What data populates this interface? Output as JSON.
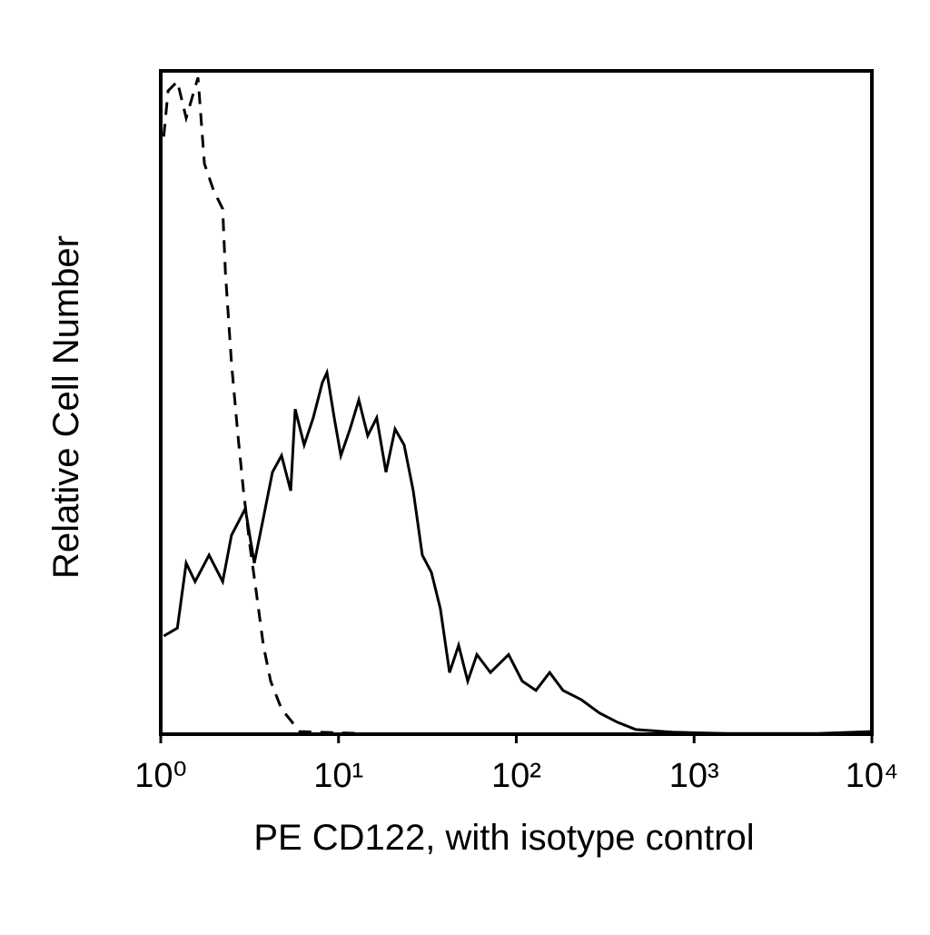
{
  "chart_data": {
    "type": "line",
    "xlabel": "PE CD122, with isotype control",
    "ylabel": "Relative Cell Number",
    "xscale": "log",
    "xlim": [
      1,
      10000
    ],
    "ylim": [
      0,
      100
    ],
    "xticks": [
      {
        "value": 1,
        "label": "10⁰"
      },
      {
        "value": 10,
        "label": "10¹"
      },
      {
        "value": 100,
        "label": "10²"
      },
      {
        "value": 1000,
        "label": "10³"
      },
      {
        "value": 10000,
        "label": "10⁴"
      }
    ],
    "series": [
      {
        "color": "#000000",
        "style": "solid",
        "x": [
          1.04,
          1.24,
          1.39,
          1.56,
          1.87,
          2.23,
          2.5,
          2.99,
          3.36,
          3.78,
          4.25,
          4.78,
          5.38,
          5.7,
          6.41,
          7.21,
          8.11,
          8.61,
          9.46,
          10.3,
          11.6,
          13,
          14.6,
          16.4,
          18.5,
          20.8,
          23.4,
          26.3,
          29.6,
          33.3,
          37.4,
          42.1,
          47.4,
          53.3,
          60,
          71.5,
          90.5,
          108,
          129,
          154,
          183,
          232,
          293,
          371,
          470,
          752,
          1525,
          4935,
          10000
        ],
        "values": [
          14.8,
          16,
          25.8,
          23,
          27,
          23,
          30,
          34,
          25.8,
          32.6,
          39.5,
          42,
          36.7,
          49,
          43.6,
          47.7,
          53,
          54.5,
          47.7,
          42,
          46,
          50.4,
          45,
          47.7,
          39.5,
          46,
          43.6,
          36.7,
          27,
          24.4,
          18.9,
          9.3,
          13.4,
          8,
          12,
          9.3,
          12,
          8,
          6.6,
          9.3,
          6.6,
          5.2,
          3.2,
          1.8,
          0.7,
          0.3,
          0.1,
          0.1,
          0.4
        ]
      },
      {
        "color": "#000000",
        "style": "dashed",
        "x": [
          1.04,
          1.1,
          1.24,
          1.39,
          1.62,
          1.76,
          1.98,
          2.23,
          2.31,
          2.5,
          2.72,
          2.92,
          3.17,
          3.44,
          3.78,
          4.15,
          4.78,
          6.05,
          13.8
        ],
        "values": [
          90.1,
          97,
          98.4,
          92.9,
          99,
          86,
          82,
          79.2,
          69.6,
          55.9,
          44.9,
          36.7,
          28.5,
          21.6,
          13.4,
          8,
          3.8,
          0.4,
          0.1
        ]
      }
    ]
  }
}
